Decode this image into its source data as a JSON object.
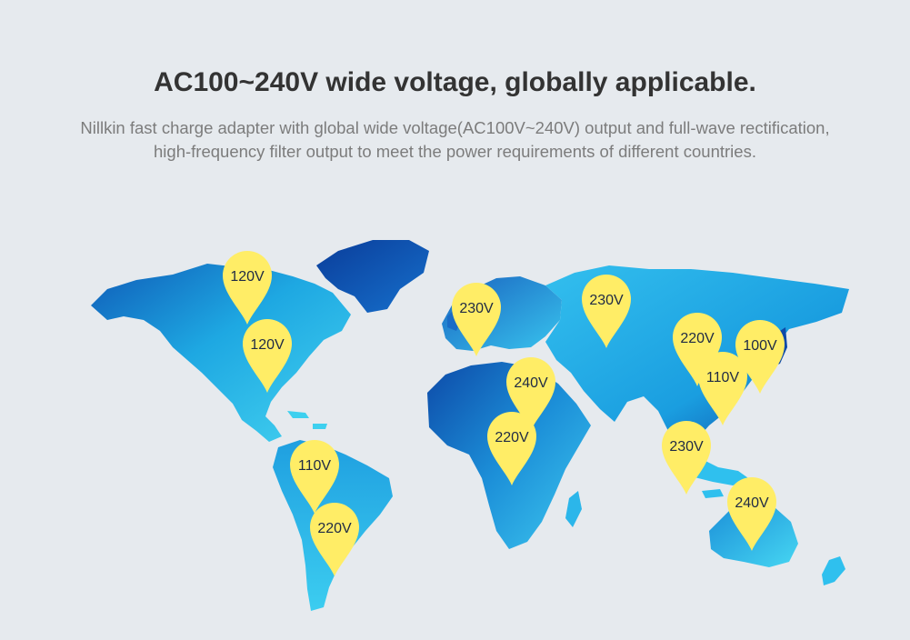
{
  "header": {
    "title": "AC100~240V wide voltage, globally applicable.",
    "subtitle_line1": "Nillkin fast charge adapter with global wide voltage(AC100V~240V) output and full-wave rectification,",
    "subtitle_line2": "high-frequency filter output to meet the power requirements of different countries."
  },
  "colors": {
    "background": "#e6eaee",
    "pin": "#ffed66",
    "pin_text": "#1f2a44",
    "map_light": "#3ed0ef",
    "map_mid": "#17a6e0",
    "map_dark": "#1268c4",
    "map_deep": "#0a3d9a"
  },
  "pins": [
    {
      "id": "usa-north",
      "label": "120V"
    },
    {
      "id": "usa-south",
      "label": "120V"
    },
    {
      "id": "colombia",
      "label": "110V"
    },
    {
      "id": "south-america",
      "label": "220V"
    },
    {
      "id": "europe-west",
      "label": "230V"
    },
    {
      "id": "russia",
      "label": "230V"
    },
    {
      "id": "africa-north",
      "label": "240V"
    },
    {
      "id": "africa-central",
      "label": "220V"
    },
    {
      "id": "china",
      "label": "220V"
    },
    {
      "id": "japan",
      "label": "100V"
    },
    {
      "id": "taiwan",
      "label": "110V"
    },
    {
      "id": "southeast-asia",
      "label": "230V"
    },
    {
      "id": "australia",
      "label": "240V"
    }
  ]
}
